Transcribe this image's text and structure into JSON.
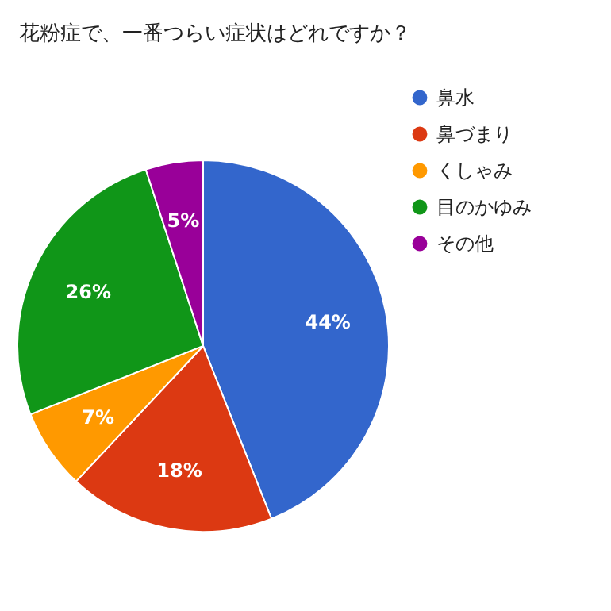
{
  "chart_data": {
    "type": "pie",
    "title": "花粉症で、一番つらい症状はどれですか？",
    "categories": [
      "鼻水",
      "鼻づまり",
      "くしゃみ",
      "目のかゆみ",
      "その他"
    ],
    "values": [
      44,
      18,
      7,
      26,
      5
    ],
    "colors": [
      "#3366cc",
      "#dc3912",
      "#ff9900",
      "#109618",
      "#990099"
    ],
    "value_labels": [
      "44%",
      "18%",
      "7%",
      "26%",
      "5%"
    ],
    "legend": "right"
  }
}
